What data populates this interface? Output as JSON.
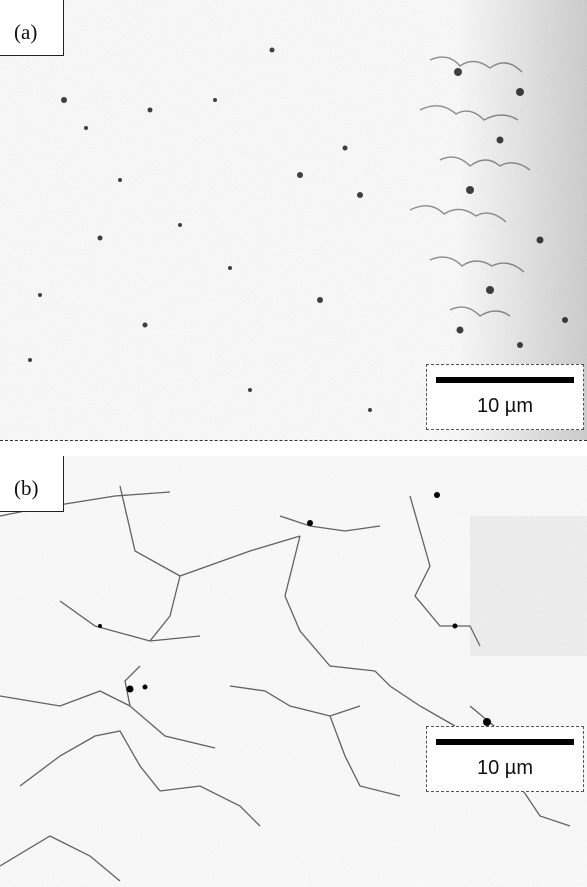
{
  "panels": [
    {
      "label": "(a)",
      "scale_label": "10 µm"
    },
    {
      "label": "(b)",
      "scale_label": "10 µm"
    }
  ]
}
